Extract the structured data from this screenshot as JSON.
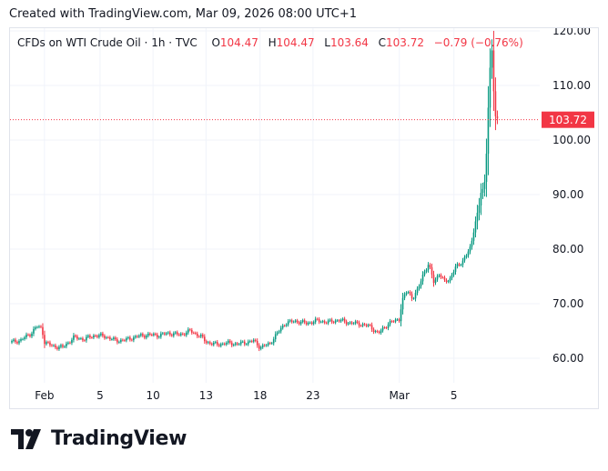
{
  "header": {
    "created_text": "Created with TradingView.com, Mar 09, 2026 08:00 UTC+1"
  },
  "legend": {
    "symbol": "CFDs on WTI Crude Oil · 1h · TVC",
    "o_label": "O",
    "o_value": "104.47",
    "h_label": "H",
    "h_value": "104.47",
    "l_label": "L",
    "l_value": "103.64",
    "c_label": "C",
    "c_value": "103.72",
    "change": "−0.79 (−0.76%)"
  },
  "brand": {
    "name": "TradingView",
    "logo_icon": "tradingview-logo-icon"
  },
  "colors": {
    "up": "#089981",
    "down": "#f23645",
    "grid": "#f0f3fa",
    "price_line": "#f23645"
  },
  "chart_data": {
    "type": "candlestick",
    "symbol": "CFDs on WTI Crude Oil",
    "interval": "1h",
    "exchange": "TVC",
    "y_ticks": [
      60,
      70,
      80,
      90,
      100,
      110,
      120
    ],
    "y_tick_labels": [
      "60.00",
      "70.00",
      "80.00",
      "90.00",
      "100.00",
      "110.00",
      "120.00"
    ],
    "ylim": [
      55.5,
      120.5
    ],
    "x_ticks": [
      {
        "label": "Feb",
        "pos": 0.065
      },
      {
        "label": "5",
        "pos": 0.17
      },
      {
        "label": "10",
        "pos": 0.27
      },
      {
        "label": "13",
        "pos": 0.37
      },
      {
        "label": "18",
        "pos": 0.472
      },
      {
        "label": "23",
        "pos": 0.572
      },
      {
        "label": "Mar",
        "pos": 0.735
      },
      {
        "label": "5",
        "pos": 0.838
      }
    ],
    "last_price": 103.72,
    "last_price_label": "103.72",
    "grid": true,
    "close_path": [
      [
        0.0,
        62.9
      ],
      [
        0.02,
        63.3
      ],
      [
        0.04,
        64.6
      ],
      [
        0.05,
        65.8
      ],
      [
        0.06,
        65.5
      ],
      [
        0.065,
        63.0
      ],
      [
        0.08,
        62.2
      ],
      [
        0.1,
        62.0
      ],
      [
        0.12,
        63.8
      ],
      [
        0.14,
        63.5
      ],
      [
        0.16,
        64.2
      ],
      [
        0.18,
        64.0
      ],
      [
        0.2,
        63.2
      ],
      [
        0.22,
        63.4
      ],
      [
        0.24,
        64.0
      ],
      [
        0.26,
        64.3
      ],
      [
        0.28,
        64.2
      ],
      [
        0.3,
        64.6
      ],
      [
        0.32,
        64.3
      ],
      [
        0.34,
        65.0
      ],
      [
        0.36,
        64.0
      ],
      [
        0.37,
        63.0
      ],
      [
        0.39,
        62.5
      ],
      [
        0.41,
        62.8
      ],
      [
        0.43,
        62.6
      ],
      [
        0.45,
        63.0
      ],
      [
        0.46,
        63.2
      ],
      [
        0.472,
        62.0
      ],
      [
        0.49,
        62.6
      ],
      [
        0.5,
        64.0
      ],
      [
        0.52,
        66.5
      ],
      [
        0.54,
        66.8
      ],
      [
        0.56,
        66.4
      ],
      [
        0.58,
        66.9
      ],
      [
        0.6,
        66.6
      ],
      [
        0.62,
        67.0
      ],
      [
        0.64,
        66.5
      ],
      [
        0.66,
        66.3
      ],
      [
        0.68,
        65.8
      ],
      [
        0.695,
        64.5
      ],
      [
        0.705,
        65.5
      ],
      [
        0.715,
        66.4
      ],
      [
        0.725,
        66.8
      ],
      [
        0.735,
        67.2
      ],
      [
        0.74,
        70.5
      ],
      [
        0.75,
        72.4
      ],
      [
        0.76,
        71.0
      ],
      [
        0.77,
        72.5
      ],
      [
        0.78,
        75.5
      ],
      [
        0.79,
        77.2
      ],
      [
        0.8,
        74.0
      ],
      [
        0.81,
        75.5
      ],
      [
        0.82,
        74.0
      ],
      [
        0.83,
        74.5
      ],
      [
        0.84,
        76.5
      ],
      [
        0.85,
        77.3
      ],
      [
        0.86,
        78.7
      ],
      [
        0.87,
        80.3
      ],
      [
        0.878,
        85.0
      ],
      [
        0.885,
        87.5
      ],
      [
        0.89,
        91.0
      ],
      [
        0.895,
        90.5
      ],
      [
        0.9,
        98.8
      ],
      [
        0.905,
        112.0
      ],
      [
        0.91,
        116.5
      ],
      [
        0.915,
        104.5
      ],
      [
        0.92,
        103.7
      ]
    ]
  }
}
